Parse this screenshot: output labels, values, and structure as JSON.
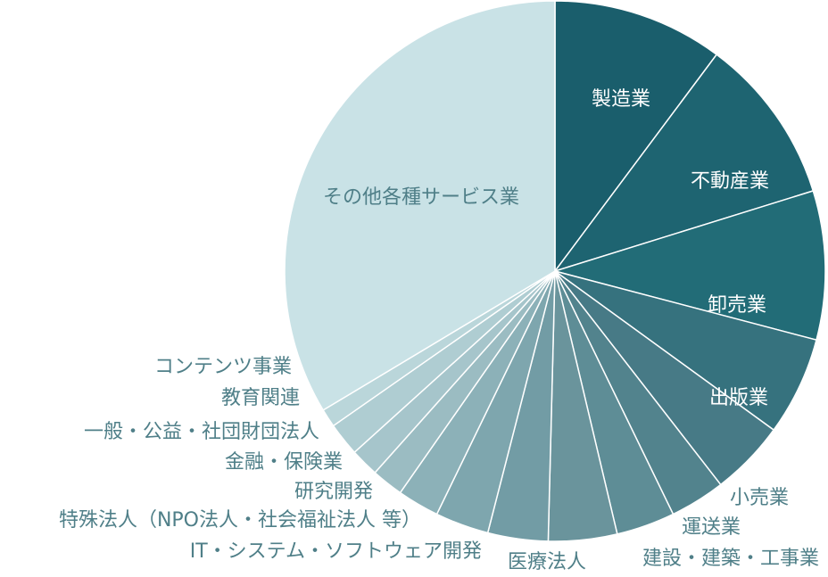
{
  "chart_data": {
    "type": "pie",
    "title": "",
    "slices": [
      {
        "label": "製造業",
        "value": 10.2,
        "color": "#1a5e6c"
      },
      {
        "label": "不動産業",
        "value": 10.0,
        "color": "#1e6471"
      },
      {
        "label": "卸売業",
        "value": 8.9,
        "color": "#226c77"
      },
      {
        "label": "出版業",
        "value": 5.9,
        "color": "#36727e"
      },
      {
        "label": "小売業",
        "value": 4.5,
        "color": "#477a86"
      },
      {
        "label": "運送業",
        "value": 3.3,
        "color": "#52838d"
      },
      {
        "label": "建設・建築・工事業",
        "value": 3.5,
        "color": "#5e8d96"
      },
      {
        "label": "医療法人",
        "value": 4.1,
        "color": "#6a949c"
      },
      {
        "label": "IT・システム・ソフトウェア開発",
        "value": 3.6,
        "color": "#729ca5"
      },
      {
        "label": "特殊法人（NPO法人・社会福祉法人 等）",
        "value": 3.2,
        "color": "#7ea6ae"
      },
      {
        "label": "研究開発",
        "value": 2.5,
        "color": "#8cb1b8"
      },
      {
        "label": "金融・保険業",
        "value": 1.9,
        "color": "#9bbcc2"
      },
      {
        "label": "一般・公益・社団財団法人",
        "value": 1.7,
        "color": "#a6c5cb"
      },
      {
        "label": "教育関連",
        "value": 2.0,
        "color": "#afcdd2"
      },
      {
        "label": "コンテンツ事業",
        "value": 1.1,
        "color": "#bad6da"
      },
      {
        "label": "その他各種サービス業",
        "value": 33.6,
        "color": "#c9e2e6"
      }
    ]
  }
}
